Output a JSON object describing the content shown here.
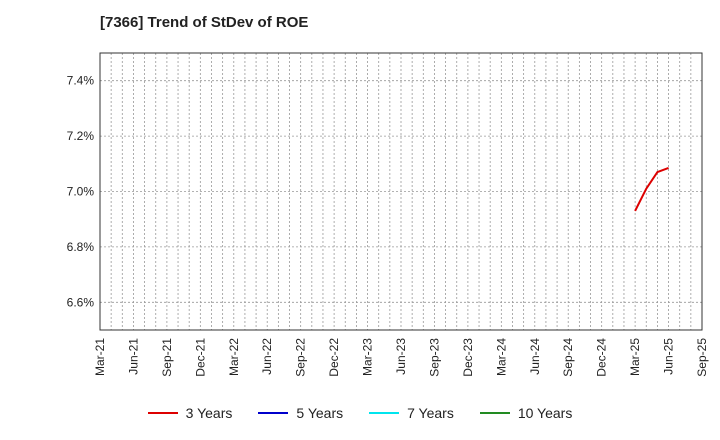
{
  "chart_data": {
    "type": "line",
    "title": "[7366]  Trend of StDev of ROE",
    "xlabel": "",
    "ylabel": "",
    "ylim": [
      6.5,
      7.5
    ],
    "yticks": [
      6.6,
      6.8,
      7.0,
      7.2,
      7.4
    ],
    "ytick_labels": [
      "6.6%",
      "6.8%",
      "7.0%",
      "7.2%",
      "7.4%"
    ],
    "xtick_labels": [
      "Mar-21",
      "Jun-21",
      "Sep-21",
      "Dec-21",
      "Mar-22",
      "Jun-22",
      "Sep-22",
      "Dec-22",
      "Mar-23",
      "Jun-23",
      "Sep-23",
      "Dec-23",
      "Mar-24",
      "Jun-24",
      "Sep-24",
      "Dec-24",
      "Mar-25",
      "Jun-25",
      "Sep-25"
    ],
    "x_months": [
      "2021-03",
      "2025-09"
    ],
    "grid": true,
    "legend_position": "bottom",
    "series": [
      {
        "name": "3 Years",
        "color": "#dd0000",
        "points": [
          {
            "x": "2025-03",
            "y": 6.93
          },
          {
            "x": "2025-04",
            "y": 7.01
          },
          {
            "x": "2025-05",
            "y": 7.07
          },
          {
            "x": "2025-06",
            "y": 7.085
          }
        ]
      },
      {
        "name": "5 Years",
        "color": "#0000cc",
        "points": []
      },
      {
        "name": "7 Years",
        "color": "#00e5ee",
        "points": []
      },
      {
        "name": "10 Years",
        "color": "#228b22",
        "points": []
      }
    ]
  }
}
